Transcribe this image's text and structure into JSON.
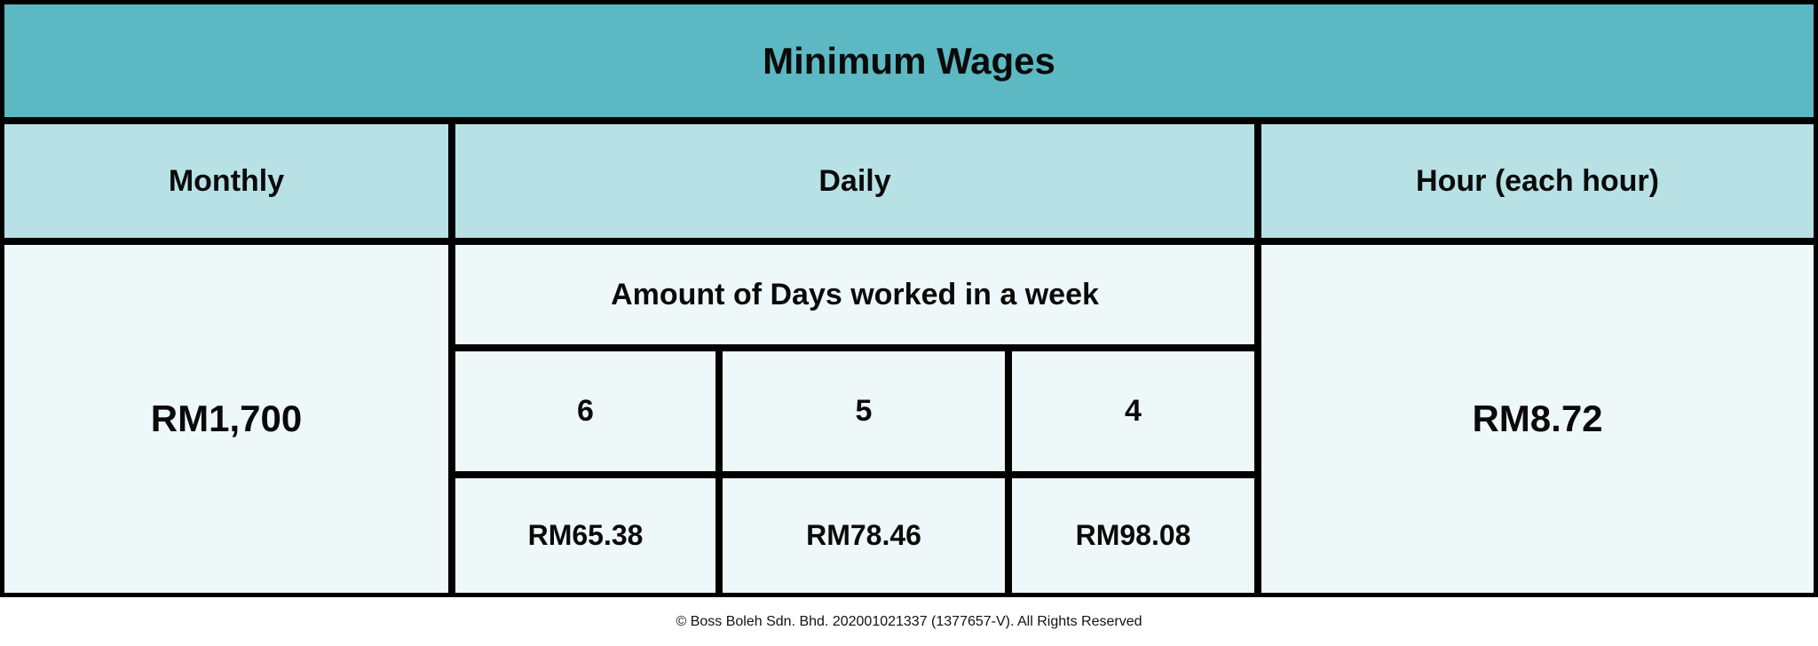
{
  "title": "Minimum Wages",
  "headers": {
    "monthly": "Monthly",
    "daily": "Daily",
    "hourly": "Hour (each hour)"
  },
  "monthly_value": "RM1,700",
  "daily": {
    "subheader": "Amount of Days worked in a week",
    "days": [
      "6",
      "5",
      "4"
    ],
    "values": [
      "RM65.38",
      "RM78.46",
      "RM98.08"
    ]
  },
  "hourly_value": "RM8.72",
  "footer": "© Boss Boleh Sdn. Bhd. 202001021337 (1377657-V). All Rights Reserved",
  "colors": {
    "title_bg": "#5cb8c2",
    "header_bg": "#b8e1e5",
    "body_bg": "#eff8f9",
    "border": "#000000"
  }
}
